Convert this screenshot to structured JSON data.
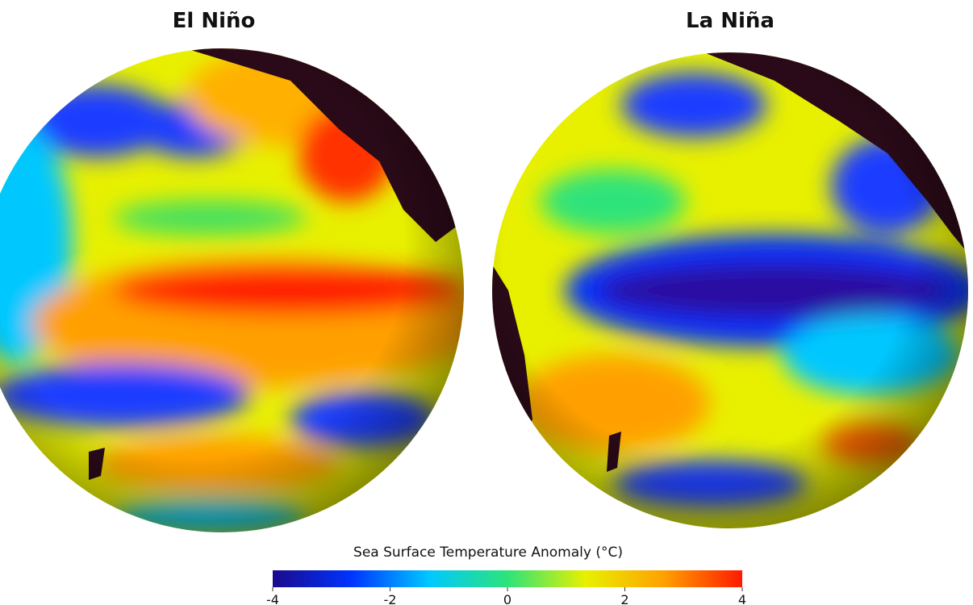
{
  "panels": [
    {
      "title": "El Niño"
    },
    {
      "title": "La Niña"
    }
  ],
  "colorbar": {
    "label": "Sea Surface Temperature Anomaly (°C)",
    "lim": [
      -4,
      4
    ],
    "ticks": [
      -4,
      -2,
      0,
      2,
      4
    ],
    "colors": [
      "#1a0a8c",
      "#0033ff",
      "#00c8ff",
      "#2de37a",
      "#e8f000",
      "#ffa000",
      "#ff1a00"
    ]
  }
}
